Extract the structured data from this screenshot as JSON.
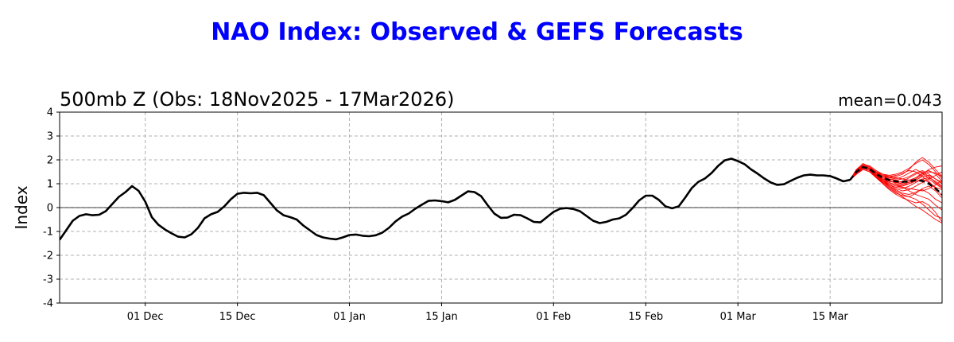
{
  "title": "NAO Index: Observed & GEFS Forecasts",
  "colors": {
    "title": "#0000ff",
    "observed": "#000000",
    "members": "#ff0000",
    "mean": "#000000",
    "grid": "#b0b0b0"
  },
  "chart_data": {
    "type": "line",
    "title": "500mb Z (Obs: 18Nov2025 - 17Mar2026)",
    "annotation": "mean=0.043",
    "xlabel": "",
    "ylabel": "Index",
    "xlim": [
      "2025-11-18",
      "2026-04-01"
    ],
    "ylim": [
      -4,
      4
    ],
    "yticks": [
      -4,
      -3,
      -2,
      -1,
      0,
      1,
      2,
      3,
      4
    ],
    "xticks": [
      {
        "date": "2025-12-01",
        "label": "01 Dec"
      },
      {
        "date": "2025-12-15",
        "label": "15 Dec"
      },
      {
        "date": "2026-01-01",
        "label": "01 Jan"
      },
      {
        "date": "2026-01-15",
        "label": "15 Jan"
      },
      {
        "date": "2026-02-01",
        "label": "01 Feb"
      },
      {
        "date": "2026-02-15",
        "label": "15 Feb"
      },
      {
        "date": "2026-03-01",
        "label": "01 Mar"
      },
      {
        "date": "2026-03-15",
        "label": "15 Mar"
      }
    ],
    "grid": true,
    "zero_line": true,
    "observed": {
      "start": "2025-11-18",
      "values": [
        -1.35,
        -0.95,
        -0.55,
        -0.35,
        -0.28,
        -0.32,
        -0.3,
        -0.15,
        0.15,
        0.45,
        0.65,
        0.9,
        0.7,
        0.25,
        -0.4,
        -0.72,
        -0.92,
        -1.08,
        -1.22,
        -1.25,
        -1.12,
        -0.85,
        -0.45,
        -0.28,
        -0.18,
        0.05,
        0.35,
        0.58,
        0.62,
        0.6,
        0.62,
        0.52,
        0.2,
        -0.12,
        -0.32,
        -0.4,
        -0.5,
        -0.75,
        -0.95,
        -1.15,
        -1.25,
        -1.3,
        -1.33,
        -1.25,
        -1.15,
        -1.13,
        -1.18,
        -1.2,
        -1.16,
        -1.05,
        -0.85,
        -0.58,
        -0.38,
        -0.25,
        -0.05,
        0.12,
        0.28,
        0.3,
        0.27,
        0.22,
        0.32,
        0.5,
        0.68,
        0.65,
        0.48,
        0.1,
        -0.25,
        -0.43,
        -0.42,
        -0.3,
        -0.32,
        -0.45,
        -0.6,
        -0.62,
        -0.4,
        -0.18,
        -0.05,
        -0.02,
        -0.06,
        -0.15,
        -0.35,
        -0.55,
        -0.65,
        -0.6,
        -0.5,
        -0.45,
        -0.3,
        -0.02,
        0.3,
        0.5,
        0.5,
        0.32,
        0.05,
        -0.03,
        0.05,
        0.42,
        0.82,
        1.08,
        1.22,
        1.45,
        1.75,
        1.98,
        2.05,
        1.95,
        1.82,
        1.6,
        1.42,
        1.22,
        1.05,
        0.95,
        0.98,
        1.12,
        1.25,
        1.35,
        1.38,
        1.35,
        1.35,
        1.32,
        1.22,
        1.1,
        1.16
      ]
    },
    "ensemble_mean": {
      "start": "2026-03-18",
      "values": [
        1.15,
        1.5,
        1.7,
        1.62,
        1.4,
        1.25,
        1.15,
        1.1,
        1.08,
        1.1,
        1.15,
        1.12,
        1.0,
        0.8,
        0.55
      ]
    },
    "members": {
      "start": "2026-03-18",
      "series": [
        [
          1.15,
          1.55,
          1.8,
          1.7,
          1.45,
          1.3,
          1.2,
          1.15,
          1.2,
          1.3,
          1.45,
          1.55,
          1.4,
          1.2,
          1.0
        ],
        [
          1.15,
          1.45,
          1.65,
          1.55,
          1.3,
          1.1,
          0.95,
          0.85,
          0.8,
          0.9,
          1.05,
          1.2,
          1.25,
          1.1,
          0.9
        ],
        [
          1.15,
          1.6,
          1.75,
          1.65,
          1.5,
          1.4,
          1.35,
          1.4,
          1.5,
          1.65,
          1.85,
          2.0,
          1.8,
          1.5,
          1.2
        ],
        [
          1.15,
          1.4,
          1.6,
          1.5,
          1.25,
          1.0,
          0.8,
          0.6,
          0.5,
          0.45,
          0.6,
          0.8,
          0.9,
          0.7,
          0.4
        ],
        [
          1.15,
          1.5,
          1.7,
          1.6,
          1.35,
          1.2,
          1.1,
          1.05,
          1.0,
          1.05,
          1.2,
          1.35,
          1.5,
          1.45,
          1.3
        ],
        [
          1.15,
          1.55,
          1.75,
          1.6,
          1.3,
          1.0,
          0.75,
          0.55,
          0.4,
          0.3,
          0.2,
          0.25,
          0.1,
          -0.2,
          -0.6
        ],
        [
          1.15,
          1.45,
          1.7,
          1.65,
          1.5,
          1.35,
          1.25,
          1.2,
          1.3,
          1.45,
          1.6,
          1.45,
          1.2,
          1.0,
          0.8
        ],
        [
          1.15,
          1.5,
          1.8,
          1.75,
          1.55,
          1.4,
          1.3,
          1.35,
          1.45,
          1.55,
          1.5,
          1.3,
          1.1,
          0.8,
          0.5
        ],
        [
          1.15,
          1.6,
          1.85,
          1.7,
          1.4,
          1.15,
          0.95,
          0.8,
          0.7,
          0.75,
          0.9,
          1.05,
          1.2,
          1.35,
          1.5
        ],
        [
          1.15,
          1.4,
          1.6,
          1.5,
          1.3,
          1.15,
          1.05,
          0.95,
          0.85,
          0.7,
          0.55,
          0.45,
          0.35,
          0.1,
          -0.1
        ],
        [
          1.15,
          1.5,
          1.65,
          1.55,
          1.4,
          1.3,
          1.25,
          1.3,
          1.4,
          1.6,
          1.9,
          2.1,
          1.9,
          1.6,
          1.3
        ],
        [
          1.15,
          1.55,
          1.7,
          1.6,
          1.35,
          1.1,
          0.9,
          0.7,
          0.55,
          0.45,
          0.35,
          0.15,
          -0.1,
          -0.35,
          -0.45
        ],
        [
          1.15,
          1.5,
          1.75,
          1.7,
          1.5,
          1.3,
          1.15,
          1.0,
          0.95,
          1.0,
          1.1,
          1.2,
          1.05,
          0.85,
          0.75
        ],
        [
          1.15,
          1.45,
          1.65,
          1.55,
          1.3,
          1.05,
          0.85,
          0.65,
          0.45,
          0.25,
          0.05,
          -0.1,
          -0.3,
          -0.5,
          -0.65
        ],
        [
          1.15,
          1.55,
          1.8,
          1.7,
          1.5,
          1.35,
          1.3,
          1.25,
          1.2,
          1.15,
          1.25,
          1.4,
          1.6,
          1.7,
          1.75
        ],
        [
          1.15,
          1.5,
          1.7,
          1.6,
          1.4,
          1.2,
          1.05,
          0.95,
          0.9,
          1.0,
          1.15,
          1.3,
          1.35,
          1.2,
          1.05
        ],
        [
          1.15,
          1.6,
          1.75,
          1.65,
          1.45,
          1.3,
          1.2,
          1.1,
          1.05,
          1.1,
          1.25,
          1.45,
          1.55,
          1.4,
          1.1
        ],
        [
          1.15,
          1.45,
          1.6,
          1.5,
          1.25,
          1.05,
          0.9,
          0.75,
          0.6,
          0.55,
          0.65,
          0.75,
          0.6,
          0.35,
          0.2
        ],
        [
          1.15,
          1.5,
          1.7,
          1.65,
          1.45,
          1.25,
          1.1,
          1.05,
          1.1,
          1.25,
          1.4,
          1.5,
          1.3,
          1.05,
          0.85
        ],
        [
          1.15,
          1.55,
          1.75,
          1.6,
          1.35,
          1.15,
          1.0,
          0.9,
          0.85,
          0.8,
          0.75,
          0.7,
          0.8,
          0.95,
          1.15
        ]
      ]
    }
  }
}
